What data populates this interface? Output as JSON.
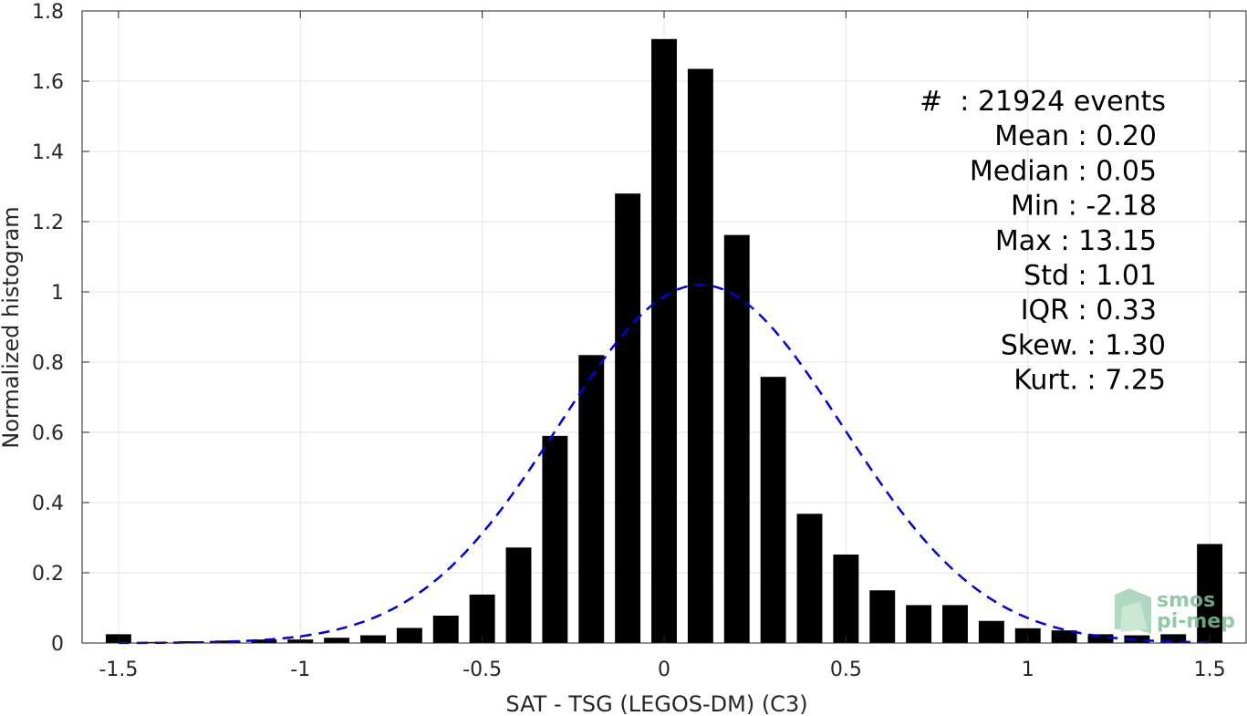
{
  "chart_data": {
    "type": "bar",
    "xlabel": "SAT - TSG (LEGOS-DM) (C3)",
    "ylabel": "Normalized histogram",
    "xlim": [
      -1.6,
      1.6
    ],
    "ylim": [
      0,
      1.8
    ],
    "xticks": [
      -1.5,
      -1,
      -0.5,
      0,
      0.5,
      1,
      1.5
    ],
    "xtick_labels": [
      "-1.5",
      "-1",
      "-0.5",
      "0",
      "0.5",
      "1",
      "1.5"
    ],
    "yticks": [
      0,
      0.2,
      0.4,
      0.6,
      0.8,
      1,
      1.2,
      1.4,
      1.6,
      1.8
    ],
    "ytick_labels": [
      "0",
      "0.2",
      "0.4",
      "0.6",
      "0.8",
      "1",
      "1.2",
      "1.4",
      "1.6",
      "1.8"
    ],
    "grid": true,
    "bar_width": 0.07,
    "x": [
      -1.5,
      -1.4,
      -1.3,
      -1.2,
      -1.1,
      -1.0,
      -0.9,
      -0.8,
      -0.7,
      -0.6,
      -0.5,
      -0.4,
      -0.3,
      -0.2,
      -0.1,
      0.0,
      0.1,
      0.2,
      0.3,
      0.4,
      0.5,
      0.6,
      0.7,
      0.8,
      0.9,
      1.0,
      1.1,
      1.2,
      1.3,
      1.4,
      1.5
    ],
    "values": [
      0.025,
      0.003,
      0.005,
      0.007,
      0.01,
      0.01,
      0.015,
      0.022,
      0.043,
      0.078,
      0.138,
      0.272,
      0.59,
      0.82,
      1.28,
      1.72,
      1.635,
      1.162,
      0.758,
      0.368,
      0.252,
      0.15,
      0.108,
      0.108,
      0.063,
      0.042,
      0.036,
      0.025,
      0.022,
      0.025,
      0.282
    ],
    "bar_color": "#000000",
    "fit_curve": {
      "style": "dashed",
      "color": "#0000dd",
      "mean": 0.1,
      "std": 0.39,
      "peak": 1.02,
      "x_range": [
        -1.5,
        1.5
      ]
    },
    "stats_text": [
      "#  : 21924 events",
      "Mean : 0.20",
      "Median : 0.05",
      "Min : -2.18",
      "Max : 13.15",
      "Std : 1.01",
      "IQR : 0.33",
      "Skew. : 1.30",
      "Kurt. : 7.25"
    ],
    "logo_lines": [
      "smos",
      "pi-mep"
    ]
  }
}
